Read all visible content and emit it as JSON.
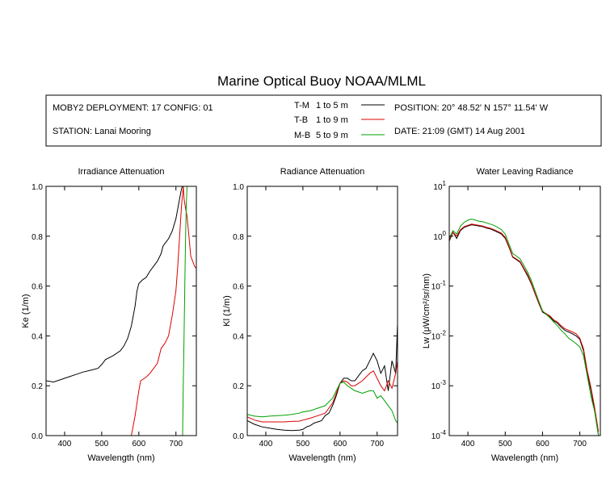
{
  "title": "Marine Optical Buoy NOAA/MLML",
  "info": {
    "deployment": "MOBY2 DEPLOYMENT: 17 CONFIG: 01",
    "station": "STATION: Lanai Mooring",
    "position": "POSITION: 20° 48.52' N   157° 11.54' W",
    "date": "DATE: 21:09 (GMT) 14 Aug 2001",
    "legend": [
      {
        "code": "T-M",
        "range": "1 to 5  m",
        "color": "#000000"
      },
      {
        "code": "T-B",
        "range": "1 to 9  m",
        "color": "#dd0000"
      },
      {
        "code": "M-B",
        "range": "5 to 9  m",
        "color": "#00a000"
      }
    ]
  },
  "chart_data": [
    {
      "type": "line",
      "title": "Irradiance Attenuation",
      "xlabel": "Wavelength (nm)",
      "ylabel": "Ke  (1/m)",
      "xlim": [
        350,
        755
      ],
      "ylim": [
        0,
        1.0
      ],
      "xticks": [
        400,
        500,
        600,
        700
      ],
      "yticks": [
        "0.0",
        "0.2",
        "0.4",
        "0.6",
        "0.8",
        "1.0"
      ],
      "series": [
        {
          "name": "T-M",
          "color": "#000000",
          "x": [
            350,
            370,
            390,
            410,
            430,
            450,
            470,
            490,
            500,
            510,
            530,
            550,
            560,
            570,
            580,
            590,
            595,
            600,
            610,
            620,
            630,
            640,
            650,
            660,
            665,
            670,
            680,
            690,
            700,
            705,
            710,
            715,
            718
          ],
          "y": [
            0.22,
            0.215,
            0.225,
            0.235,
            0.245,
            0.255,
            0.262,
            0.27,
            0.285,
            0.305,
            0.32,
            0.34,
            0.36,
            0.39,
            0.44,
            0.52,
            0.58,
            0.61,
            0.625,
            0.635,
            0.66,
            0.68,
            0.7,
            0.73,
            0.76,
            0.77,
            0.79,
            0.82,
            0.87,
            0.91,
            0.95,
            0.99,
            1.0
          ]
        },
        {
          "name": "T-B",
          "color": "#dd0000",
          "x": [
            580,
            590,
            600,
            605,
            610,
            620,
            630,
            640,
            650,
            660,
            670,
            680,
            690,
            700,
            705,
            710,
            715,
            720,
            722,
            725,
            730,
            735,
            740,
            745,
            750,
            755
          ],
          "y": [
            0.0,
            0.08,
            0.18,
            0.22,
            0.225,
            0.235,
            0.25,
            0.27,
            0.29,
            0.35,
            0.37,
            0.4,
            0.48,
            0.58,
            0.68,
            0.8,
            0.92,
            1.0,
            0.95,
            0.92,
            0.88,
            0.8,
            0.72,
            0.7,
            0.68,
            0.67
          ]
        },
        {
          "name": "M-B",
          "color": "#00a000",
          "x": [
            718,
            720,
            722,
            724,
            726,
            728,
            730
          ],
          "y": [
            0.0,
            0.22,
            0.4,
            0.62,
            0.8,
            0.93,
            1.0
          ]
        }
      ]
    },
    {
      "type": "line",
      "title": "Radiance Attenuation",
      "xlabel": "Wavelength (nm)",
      "ylabel": "Kl  (1/m)",
      "xlim": [
        350,
        755
      ],
      "ylim": [
        0,
        1.0
      ],
      "xticks": [
        400,
        500,
        600,
        700
      ],
      "yticks": [
        "0.0",
        "0.2",
        "0.4",
        "0.6",
        "0.8",
        "1.0"
      ],
      "series": [
        {
          "name": "T-M",
          "color": "#000000",
          "x": [
            350,
            370,
            390,
            410,
            430,
            450,
            470,
            490,
            500,
            510,
            520,
            530,
            540,
            550,
            560,
            570,
            580,
            590,
            600,
            610,
            620,
            630,
            640,
            650,
            660,
            670,
            680,
            690,
            700,
            710,
            720,
            730,
            740,
            750,
            755
          ],
          "y": [
            0.06,
            0.045,
            0.035,
            0.03,
            0.025,
            0.022,
            0.02,
            0.022,
            0.025,
            0.035,
            0.04,
            0.05,
            0.055,
            0.06,
            0.08,
            0.09,
            0.12,
            0.16,
            0.21,
            0.23,
            0.23,
            0.22,
            0.22,
            0.24,
            0.26,
            0.27,
            0.3,
            0.33,
            0.3,
            0.25,
            0.28,
            0.18,
            0.3,
            0.25,
            0.45
          ]
        },
        {
          "name": "T-B",
          "color": "#dd0000",
          "x": [
            350,
            370,
            390,
            410,
            430,
            450,
            470,
            490,
            500,
            520,
            540,
            560,
            580,
            590,
            600,
            610,
            620,
            630,
            640,
            650,
            660,
            670,
            680,
            690,
            700,
            710,
            720,
            730,
            740,
            750,
            755
          ],
          "y": [
            0.075,
            0.062,
            0.055,
            0.055,
            0.055,
            0.055,
            0.057,
            0.058,
            0.062,
            0.07,
            0.08,
            0.09,
            0.13,
            0.17,
            0.21,
            0.22,
            0.215,
            0.2,
            0.2,
            0.21,
            0.22,
            0.235,
            0.25,
            0.26,
            0.23,
            0.2,
            0.18,
            0.22,
            0.19,
            0.25,
            0.3
          ]
        },
        {
          "name": "M-B",
          "color": "#00a000",
          "x": [
            350,
            370,
            390,
            410,
            430,
            450,
            470,
            490,
            500,
            520,
            540,
            560,
            580,
            590,
            600,
            610,
            620,
            630,
            640,
            650,
            660,
            670,
            680,
            690,
            700,
            710,
            720,
            730,
            740,
            750,
            755
          ],
          "y": [
            0.085,
            0.078,
            0.075,
            0.078,
            0.08,
            0.082,
            0.085,
            0.09,
            0.095,
            0.1,
            0.11,
            0.12,
            0.15,
            0.18,
            0.21,
            0.215,
            0.2,
            0.19,
            0.18,
            0.175,
            0.17,
            0.175,
            0.18,
            0.18,
            0.15,
            0.16,
            0.14,
            0.12,
            0.1,
            0.06,
            0.05
          ]
        }
      ]
    },
    {
      "type": "line",
      "title": "Water Leaving Radiance",
      "xlabel": "Wavelength (nm)",
      "ylabel": "Lw  (μW/cm²/sr/nm)",
      "yscale": "log",
      "xlim": [
        350,
        755
      ],
      "ylim": [
        0.0001,
        10
      ],
      "xticks": [
        400,
        500,
        600,
        700
      ],
      "yticks": [
        {
          "base": "10",
          "exp": "-4"
        },
        {
          "base": "10",
          "exp": "-3"
        },
        {
          "base": "10",
          "exp": "-2"
        },
        {
          "base": "10",
          "exp": "-1"
        },
        {
          "base": "10",
          "exp": "0"
        },
        {
          "base": "10",
          "exp": "1"
        }
      ],
      "series": [
        {
          "name": "T-M",
          "color": "#000000",
          "x": [
            350,
            360,
            370,
            380,
            390,
            400,
            410,
            420,
            430,
            440,
            450,
            460,
            470,
            480,
            490,
            500,
            510,
            520,
            530,
            540,
            550,
            560,
            570,
            580,
            590,
            600,
            610,
            620,
            630,
            640,
            650,
            660,
            670,
            680,
            690,
            700,
            710,
            720,
            730,
            740,
            750
          ],
          "y": [
            0.8,
            1.2,
            0.9,
            1.3,
            1.5,
            1.6,
            1.7,
            1.65,
            1.6,
            1.55,
            1.45,
            1.4,
            1.3,
            1.2,
            1.1,
            0.9,
            0.6,
            0.38,
            0.34,
            0.3,
            0.22,
            0.16,
            0.11,
            0.07,
            0.045,
            0.03,
            0.027,
            0.024,
            0.02,
            0.018,
            0.015,
            0.013,
            0.012,
            0.011,
            0.01,
            0.0085,
            0.005,
            0.0018,
            0.0008,
            0.0003,
            0.0001
          ]
        },
        {
          "name": "T-B",
          "color": "#dd0000",
          "x": [
            350,
            360,
            370,
            380,
            390,
            400,
            410,
            420,
            430,
            440,
            450,
            460,
            470,
            480,
            490,
            500,
            510,
            520,
            530,
            540,
            550,
            560,
            570,
            580,
            590,
            600,
            610,
            620,
            630,
            640,
            650,
            660,
            670,
            680,
            690,
            700,
            710,
            720,
            730,
            740,
            750
          ],
          "y": [
            0.85,
            1.2,
            1.0,
            1.35,
            1.55,
            1.65,
            1.75,
            1.7,
            1.65,
            1.6,
            1.5,
            1.45,
            1.35,
            1.25,
            1.15,
            0.95,
            0.62,
            0.39,
            0.35,
            0.31,
            0.23,
            0.17,
            0.115,
            0.072,
            0.046,
            0.031,
            0.028,
            0.025,
            0.021,
            0.019,
            0.016,
            0.014,
            0.013,
            0.012,
            0.011,
            0.009,
            0.0055,
            0.002,
            0.0009,
            0.00035,
            0.00012
          ]
        },
        {
          "name": "M-B",
          "color": "#00a000",
          "x": [
            350,
            360,
            370,
            380,
            390,
            400,
            410,
            420,
            430,
            440,
            450,
            460,
            470,
            480,
            490,
            500,
            510,
            520,
            530,
            540,
            550,
            560,
            570,
            580,
            590,
            600,
            610,
            620,
            630,
            640,
            650,
            660,
            670,
            680,
            690,
            700,
            710,
            720,
            730,
            740,
            750
          ],
          "y": [
            0.9,
            1.3,
            1.1,
            1.6,
            1.9,
            2.1,
            2.2,
            2.1,
            2.0,
            1.95,
            1.85,
            1.75,
            1.65,
            1.5,
            1.35,
            1.1,
            0.7,
            0.45,
            0.4,
            0.35,
            0.26,
            0.19,
            0.13,
            0.08,
            0.05,
            0.032,
            0.027,
            0.023,
            0.019,
            0.016,
            0.013,
            0.011,
            0.009,
            0.008,
            0.007,
            0.006,
            0.004,
            0.0016,
            0.0006,
            0.0003,
            0.0001
          ]
        }
      ]
    }
  ]
}
